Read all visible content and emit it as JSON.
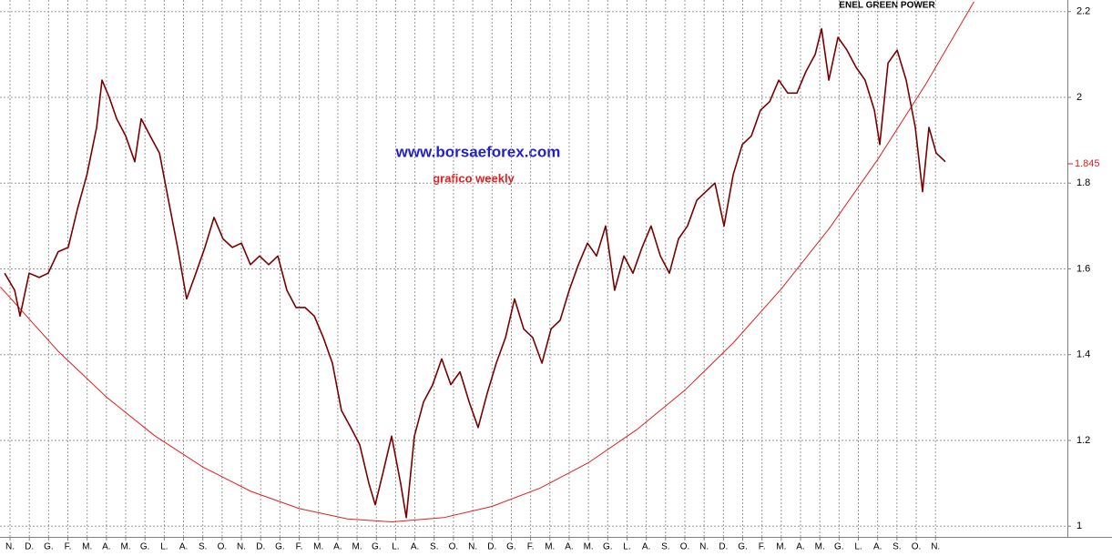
{
  "chart_data": {
    "type": "line",
    "title": "ENEL GREEN POWER",
    "annotations": [
      "www.borsaeforex.com",
      "grafico weekly"
    ],
    "color": "#7a0000",
    "x": [
      -0.28,
      0.24,
      0.52,
      0.99,
      1.51,
      1.98,
      2.5,
      3.02,
      3.5,
      3.99,
      4.49,
      4.77,
      5.15,
      5.53,
      6.0,
      6.47,
      6.8,
      7.27,
      7.75,
      8.22,
      8.69,
      9.16,
      9.64,
      10.11,
      10.58,
      11.05,
      11.53,
      12.0,
      12.47,
      12.94,
      13.42,
      13.89,
      14.36,
      14.83,
      15.3,
      15.78,
      16.25,
      16.72,
      17.19,
      17.67,
      18.14,
      18.61,
      18.94,
      19.32,
      19.79,
      20.26,
      20.55,
      20.97,
      21.45,
      21.92,
      22.39,
      22.86,
      23.34,
      23.81,
      24.28,
      24.75,
      25.22,
      25.7,
      26.17,
      26.64,
      27.11,
      27.59,
      28.06,
      28.53,
      29.0,
      29.48,
      29.95,
      30.42,
      30.89,
      31.36,
      31.84,
      32.31,
      32.78,
      33.25,
      33.73,
      34.2,
      34.67,
      35.14,
      35.62,
      36.09,
      36.56,
      37.03,
      37.51,
      37.98,
      38.45,
      38.92,
      39.4,
      39.87,
      40.34,
      40.81,
      41.28,
      41.76,
      42.09,
      42.47,
      42.94,
      43.41,
      43.88,
      44.35,
      44.83,
      45.11,
      45.54,
      46.01,
      46.48,
      46.95,
      47.33,
      47.66,
      48.04,
      48.51
    ],
    "values": [
      1.59,
      1.55,
      1.49,
      1.59,
      1.58,
      1.59,
      1.64,
      1.65,
      1.74,
      1.82,
      1.93,
      2.04,
      2.0,
      1.95,
      1.91,
      1.85,
      1.95,
      1.91,
      1.87,
      1.76,
      1.65,
      1.53,
      1.59,
      1.65,
      1.72,
      1.67,
      1.65,
      1.66,
      1.61,
      1.63,
      1.61,
      1.63,
      1.55,
      1.51,
      1.51,
      1.49,
      1.44,
      1.38,
      1.27,
      1.23,
      1.19,
      1.1,
      1.05,
      1.12,
      1.21,
      1.1,
      1.02,
      1.21,
      1.29,
      1.33,
      1.39,
      1.33,
      1.36,
      1.29,
      1.23,
      1.31,
      1.38,
      1.44,
      1.53,
      1.46,
      1.44,
      1.38,
      1.46,
      1.48,
      1.55,
      1.61,
      1.66,
      1.63,
      1.7,
      1.55,
      1.63,
      1.59,
      1.65,
      1.7,
      1.63,
      1.59,
      1.67,
      1.7,
      1.76,
      1.78,
      1.8,
      1.7,
      1.82,
      1.89,
      1.91,
      1.97,
      1.99,
      2.04,
      2.01,
      2.01,
      2.06,
      2.1,
      2.16,
      2.04,
      2.14,
      2.11,
      2.07,
      2.04,
      1.97,
      1.89,
      2.08,
      2.11,
      2.04,
      1.93,
      1.78,
      1.93,
      1.87,
      1.85
    ],
    "last_value": 1.845,
    "trendline": {
      "color": "#e02020",
      "x": [
        -0.5,
        2.5,
        5,
        7.5,
        10,
        12.5,
        15,
        17.5,
        19.8,
        22.5,
        25,
        27.5,
        30,
        32.5,
        35,
        37.5,
        40,
        42.5,
        45,
        47.5,
        50
      ],
      "values": [
        1.558,
        1.408,
        1.301,
        1.211,
        1.138,
        1.081,
        1.041,
        1.017,
        1.01,
        1.02,
        1.046,
        1.089,
        1.148,
        1.225,
        1.317,
        1.427,
        1.553,
        1.695,
        1.855,
        2.031,
        2.223
      ]
    },
    "xlim": [
      -0.52,
      54.84
    ],
    "ylim": [
      0.975,
      2.227
    ],
    "xticks": [
      {
        "value": 0,
        "label": "N."
      },
      {
        "value": 1,
        "label": "D."
      },
      {
        "value": 2,
        "label": "G."
      },
      {
        "value": 3,
        "label": "F."
      },
      {
        "value": 4,
        "label": "M."
      },
      {
        "value": 5,
        "label": "A."
      },
      {
        "value": 6,
        "label": "M."
      },
      {
        "value": 7,
        "label": "G."
      },
      {
        "value": 8,
        "label": "L."
      },
      {
        "value": 9,
        "label": "A."
      },
      {
        "value": 10,
        "label": "S."
      },
      {
        "value": 11,
        "label": "O."
      },
      {
        "value": 12,
        "label": "N."
      },
      {
        "value": 13,
        "label": "D."
      },
      {
        "value": 14,
        "label": "G."
      },
      {
        "value": 15,
        "label": "F."
      },
      {
        "value": 16,
        "label": "M."
      },
      {
        "value": 17,
        "label": "A."
      },
      {
        "value": 18,
        "label": "M."
      },
      {
        "value": 19,
        "label": "G."
      },
      {
        "value": 20,
        "label": "L."
      },
      {
        "value": 21,
        "label": "A."
      },
      {
        "value": 22,
        "label": "S."
      },
      {
        "value": 23,
        "label": "O."
      },
      {
        "value": 24,
        "label": "N."
      },
      {
        "value": 25,
        "label": "D."
      },
      {
        "value": 26,
        "label": "G."
      },
      {
        "value": 27,
        "label": "F."
      },
      {
        "value": 28,
        "label": "M."
      },
      {
        "value": 29,
        "label": "A."
      },
      {
        "value": 30,
        "label": "M."
      },
      {
        "value": 31,
        "label": "G."
      },
      {
        "value": 32,
        "label": "L."
      },
      {
        "value": 33,
        "label": "A."
      },
      {
        "value": 34,
        "label": "S."
      },
      {
        "value": 35,
        "label": "O."
      },
      {
        "value": 36,
        "label": "N."
      },
      {
        "value": 37,
        "label": "D."
      },
      {
        "value": 38,
        "label": "G."
      },
      {
        "value": 39,
        "label": "F."
      },
      {
        "value": 40,
        "label": "M."
      },
      {
        "value": 41,
        "label": "A."
      },
      {
        "value": 42,
        "label": "M."
      },
      {
        "value": 43,
        "label": "G."
      },
      {
        "value": 44,
        "label": "L."
      },
      {
        "value": 45,
        "label": "A."
      },
      {
        "value": 46,
        "label": "S."
      },
      {
        "value": 47,
        "label": "O."
      },
      {
        "value": 48,
        "label": "N."
      }
    ],
    "yticks": [
      1,
      1.2,
      1.4,
      1.6,
      1.8,
      2,
      2.2
    ],
    "grid": true
  }
}
